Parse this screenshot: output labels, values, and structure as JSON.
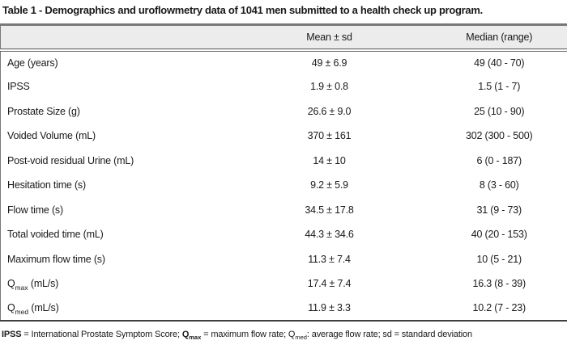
{
  "title": "Table 1 - Demographics and uroflowmetry data of 1041 men submitted to a health check up program.",
  "colors": {
    "header_bg": "#ececec",
    "border_gray": "#787878",
    "border_dark": "#3f3f3f",
    "text": "#1a1a1a"
  },
  "table": {
    "header": {
      "col_mean": "Mean ± sd",
      "col_median": "Median (range)"
    },
    "rows": [
      {
        "label_prefix": "Age (years)",
        "label_sub": "",
        "label_suffix": "",
        "mean_sd": "49 ± 6.9",
        "median_range": "49 (40 - 70)"
      },
      {
        "label_prefix": "IPSS",
        "label_sub": "",
        "label_suffix": "",
        "mean_sd": "1.9 ± 0.8",
        "median_range": "1.5 (1 - 7)"
      },
      {
        "label_prefix": "Prostate Size (g)",
        "label_sub": "",
        "label_suffix": "",
        "mean_sd": "26.6 ± 9.0",
        "median_range": "25 (10 - 90)"
      },
      {
        "label_prefix": "Voided Volume (mL)",
        "label_sub": "",
        "label_suffix": "",
        "mean_sd": "370 ± 161",
        "median_range": "302 (300 - 500)"
      },
      {
        "label_prefix": "Post-void residual Urine (mL)",
        "label_sub": "",
        "label_suffix": "",
        "mean_sd": "14 ± 10",
        "median_range": "6 (0 - 187)"
      },
      {
        "label_prefix": "Hesitation time (s)",
        "label_sub": "",
        "label_suffix": "",
        "mean_sd": "9.2 ± 5.9",
        "median_range": "8 (3 - 60)"
      },
      {
        "label_prefix": "Flow time (s)",
        "label_sub": "",
        "label_suffix": "",
        "mean_sd": "34.5 ± 17.8",
        "median_range": "31 (9 - 73)"
      },
      {
        "label_prefix": "Total voided time (mL)",
        "label_sub": "",
        "label_suffix": "",
        "mean_sd": "44.3 ± 34.6",
        "median_range": "40 (20 - 153)"
      },
      {
        "label_prefix": "Maximum flow time (s)",
        "label_sub": "",
        "label_suffix": "",
        "mean_sd": "11.3 ± 7.4",
        "median_range": "10 (5 - 21)"
      },
      {
        "label_prefix": "Q",
        "label_sub": "max",
        "label_suffix": " (mL/s)",
        "mean_sd": "17.4 ± 7.4",
        "median_range": "16.3 (8 - 39)"
      },
      {
        "label_prefix": "Q",
        "label_sub": "med",
        "label_suffix": " (mL/s)",
        "mean_sd": "11.9 ± 3.3",
        "median_range": "10.2 (7 - 23)"
      }
    ]
  },
  "footnote": {
    "ipss_bold": "IPSS",
    "seg1": " = International Prostate Symptom Score; ",
    "qmax_base": "Q",
    "qmax_sub": "max",
    "seg2": " = maximum flow rate; ",
    "qmed_base": "Q",
    "qmed_sub": "med",
    "seg3": ": average flow rate; sd = standard deviation"
  }
}
